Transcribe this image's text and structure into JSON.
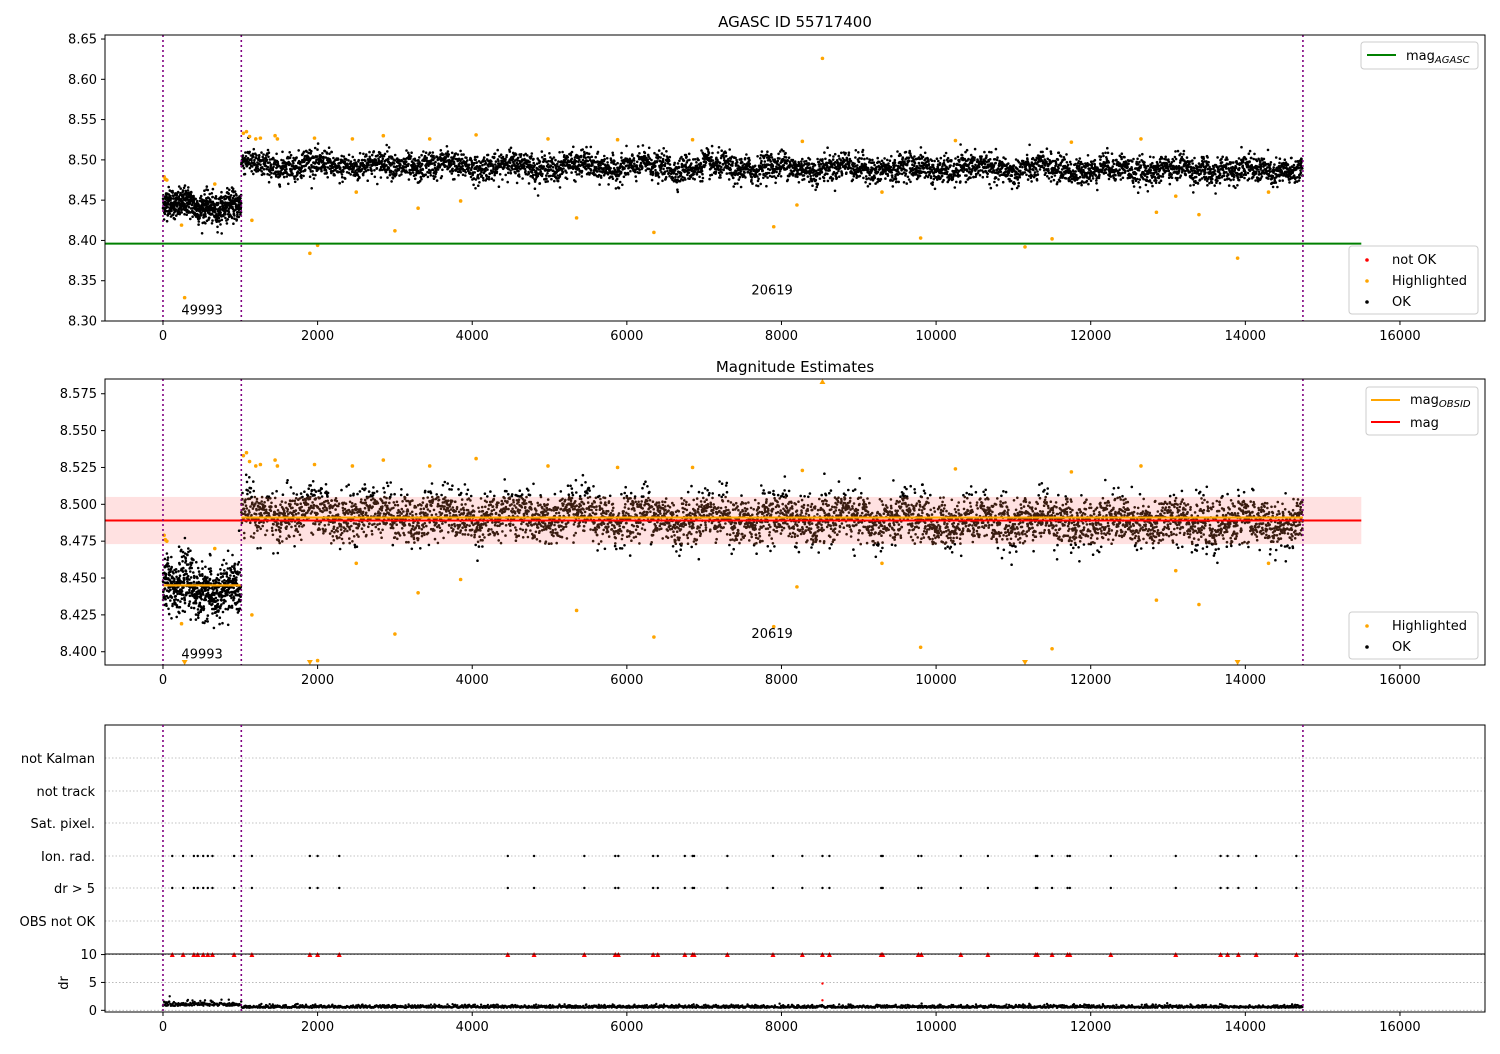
{
  "colors": {
    "ok": "#000000",
    "highlighted": "#ffa500",
    "not_ok": "#ff0000",
    "mag_agasc_line": "#008000",
    "mag_obsid_line": "#ffa500",
    "mag_line": "#ff0000",
    "mag_band": "#ffb3b3",
    "obs_boundary": "#800080",
    "grid": "#b0b0b0"
  },
  "chart_data": [
    {
      "type": "scatter",
      "title": "AGASC ID 55717400",
      "xlabel": "",
      "ylabel": "",
      "xlim": [
        -750,
        17100
      ],
      "ylim": [
        8.3,
        8.655
      ],
      "xticks": [
        0,
        2000,
        4000,
        6000,
        8000,
        10000,
        12000,
        14000,
        16000
      ],
      "yticks": [
        8.3,
        8.35,
        8.4,
        8.45,
        8.5,
        8.55,
        8.6,
        8.65
      ],
      "ytick_decimals": 2,
      "legend_lines": [
        {
          "label": "mag",
          "sub": "AGASC",
          "color": "green"
        }
      ],
      "legend_lines_position": "top-right",
      "legend_points": [
        "not OK",
        "Highlighted",
        "OK"
      ],
      "legend_points_position": "lower-right",
      "mag_agasc": 8.396,
      "mag_agasc_x_range": [
        -750,
        15500
      ],
      "obs_boundaries": [
        0,
        1013,
        14745
      ],
      "obs_labels": [
        {
          "text": "49993",
          "x": 506,
          "y": 8.313
        },
        {
          "text": "20619",
          "x": 7879,
          "y": 8.338
        }
      ],
      "ok_segments": [
        {
          "x_start": 0,
          "x_end": 1013,
          "mean": 8.443,
          "spread": 0.012
        },
        {
          "x_start": 1013,
          "x_end": 14745,
          "mean": 8.494,
          "spread": 0.011,
          "trend_end": 8.487
        }
      ],
      "highlighted_points": [
        [
          15,
          8.479
        ],
        [
          30,
          8.476
        ],
        [
          50,
          8.475
        ],
        [
          240,
          8.419
        ],
        [
          280,
          8.329
        ],
        [
          670,
          8.47
        ],
        [
          1040,
          8.533
        ],
        [
          1080,
          8.535
        ],
        [
          1120,
          8.529
        ],
        [
          1150,
          8.425
        ],
        [
          1200,
          8.526
        ],
        [
          1260,
          8.527
        ],
        [
          1450,
          8.53
        ],
        [
          1480,
          8.526
        ],
        [
          1900,
          8.384
        ],
        [
          1960,
          8.527
        ],
        [
          2000,
          8.394
        ],
        [
          2450,
          8.526
        ],
        [
          2500,
          8.46
        ],
        [
          2850,
          8.53
        ],
        [
          3000,
          8.412
        ],
        [
          3300,
          8.44
        ],
        [
          3450,
          8.526
        ],
        [
          3850,
          8.449
        ],
        [
          4050,
          8.531
        ],
        [
          4980,
          8.526
        ],
        [
          5350,
          8.428
        ],
        [
          5880,
          8.525
        ],
        [
          6350,
          8.41
        ],
        [
          6850,
          8.525
        ],
        [
          7900,
          8.417
        ],
        [
          8200,
          8.444
        ],
        [
          8270,
          8.523
        ],
        [
          8530,
          8.626
        ],
        [
          9300,
          8.46
        ],
        [
          9800,
          8.403
        ],
        [
          10250,
          8.524
        ],
        [
          11150,
          8.392
        ],
        [
          11500,
          8.402
        ],
        [
          11750,
          8.522
        ],
        [
          12650,
          8.526
        ],
        [
          12850,
          8.435
        ],
        [
          13100,
          8.455
        ],
        [
          13400,
          8.432
        ],
        [
          13900,
          8.378
        ],
        [
          14300,
          8.46
        ]
      ]
    },
    {
      "type": "scatter",
      "title": "Magnitude Estimates",
      "xlabel": "",
      "ylabel": "",
      "xlim": [
        -750,
        17100
      ],
      "ylim": [
        8.391,
        8.585
      ],
      "xticks": [
        0,
        2000,
        4000,
        6000,
        8000,
        10000,
        12000,
        14000,
        16000
      ],
      "yticks": [
        8.4,
        8.425,
        8.45,
        8.475,
        8.5,
        8.525,
        8.55,
        8.575
      ],
      "ytick_decimals": 3,
      "legend_lines": [
        {
          "label": "mag",
          "sub": "OBSID",
          "color": "orange"
        },
        {
          "label": "mag",
          "sub": "",
          "color": "red"
        }
      ],
      "legend_lines_position": "top-right",
      "legend_points": [
        "Highlighted",
        "OK"
      ],
      "legend_points_position": "lower-right",
      "mag": 8.489,
      "mag_band": [
        8.473,
        8.505
      ],
      "mag_x_range": [
        -750,
        15500
      ],
      "mag_obsid": [
        {
          "x_start": 0,
          "x_end": 1013,
          "value": 8.445
        },
        {
          "x_start": 1013,
          "x_end": 14745,
          "value": 8.491
        }
      ],
      "obs_boundaries": [
        0,
        1013,
        14745
      ],
      "obs_labels": [
        {
          "text": "49993",
          "x": 506,
          "y": 8.398
        },
        {
          "text": "20619",
          "x": 7879,
          "y": 8.412
        }
      ],
      "ok_segments": [
        {
          "x_start": 0,
          "x_end": 1013,
          "mean": 8.443,
          "spread": 0.012
        },
        {
          "x_start": 1013,
          "x_end": 14745,
          "mean": 8.494,
          "spread": 0.011,
          "trend_end": 8.487
        }
      ],
      "highlighted_points": [
        [
          15,
          8.479
        ],
        [
          30,
          8.476
        ],
        [
          50,
          8.475
        ],
        [
          240,
          8.419
        ],
        [
          670,
          8.47
        ],
        [
          1040,
          8.533
        ],
        [
          1080,
          8.535
        ],
        [
          1120,
          8.529
        ],
        [
          1150,
          8.425
        ],
        [
          1200,
          8.526
        ],
        [
          1260,
          8.527
        ],
        [
          1450,
          8.53
        ],
        [
          1480,
          8.526
        ],
        [
          1960,
          8.527
        ],
        [
          2000,
          8.394
        ],
        [
          2450,
          8.526
        ],
        [
          2500,
          8.46
        ],
        [
          2850,
          8.53
        ],
        [
          3000,
          8.412
        ],
        [
          3300,
          8.44
        ],
        [
          3450,
          8.526
        ],
        [
          3850,
          8.449
        ],
        [
          4050,
          8.531
        ],
        [
          4980,
          8.526
        ],
        [
          5350,
          8.428
        ],
        [
          5880,
          8.525
        ],
        [
          6350,
          8.41
        ],
        [
          6850,
          8.525
        ],
        [
          7900,
          8.417
        ],
        [
          8200,
          8.444
        ],
        [
          8270,
          8.523
        ],
        [
          9300,
          8.46
        ],
        [
          9800,
          8.403
        ],
        [
          10250,
          8.524
        ],
        [
          11500,
          8.402
        ],
        [
          11750,
          8.522
        ],
        [
          12650,
          8.526
        ],
        [
          12850,
          8.435
        ],
        [
          13100,
          8.455
        ],
        [
          13400,
          8.432
        ],
        [
          14300,
          8.46
        ]
      ],
      "clipped_markers": [
        {
          "x": 280,
          "dir": "down"
        },
        {
          "x": 1900,
          "dir": "down"
        },
        {
          "x": 8530,
          "dir": "up"
        },
        {
          "x": 11150,
          "dir": "down"
        },
        {
          "x": 13900,
          "dir": "down"
        }
      ]
    },
    {
      "type": "scatter",
      "title": "",
      "xlim": [
        -750,
        17100
      ],
      "categories": [
        "not Kalman",
        "not track",
        "Sat. pixel.",
        "Ion. rad.",
        "dr > 5",
        "OBS not OK"
      ],
      "flag_x": [
        120,
        260,
        400,
        450,
        520,
        580,
        640,
        920,
        1150,
        1900,
        2000,
        2280,
        4460,
        4800,
        5450,
        5850,
        5890,
        6340,
        6400,
        6750,
        6850,
        6870,
        7300,
        7890,
        8270,
        8530,
        8620,
        9290,
        9310,
        9770,
        9810,
        10320,
        10670,
        11290,
        11310,
        11500,
        11700,
        11730,
        12260,
        13100,
        13680,
        13770,
        13910,
        14140,
        14660
      ],
      "flagged_rows": [
        "Ion. rad.",
        "dr > 5"
      ],
      "obs_boundaries": [
        0,
        1013,
        14745
      ]
    },
    {
      "type": "scatter",
      "title": "",
      "xlabel": "",
      "ylabel": "dr",
      "xlim": [
        -750,
        17100
      ],
      "ylim": [
        -0.3,
        10.1
      ],
      "xticks": [
        0,
        2000,
        4000,
        6000,
        8000,
        10000,
        12000,
        14000,
        16000
      ],
      "yticks": [
        0,
        5,
        10
      ],
      "dr_clip_value": 10,
      "dr_typical": 0.45,
      "dr_outliers": [
        [
          8530,
          4.8
        ],
        [
          8530,
          1.8
        ]
      ],
      "obs_boundaries": [
        0,
        1013,
        14745
      ]
    }
  ]
}
